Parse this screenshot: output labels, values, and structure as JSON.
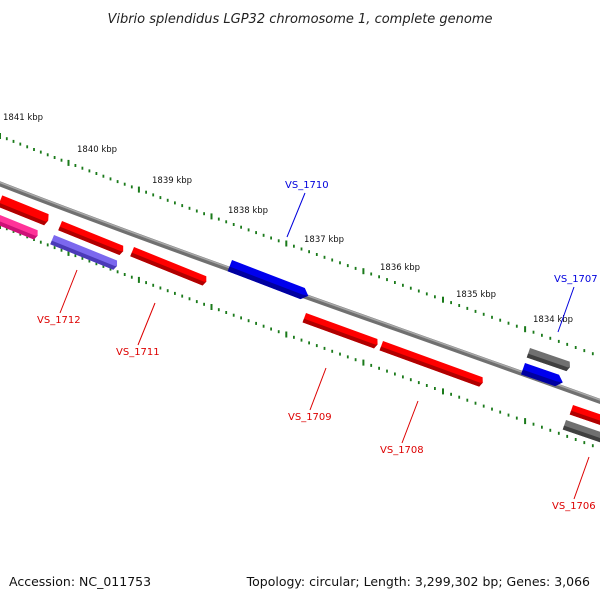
{
  "title": "Vibrio splendidus LGP32 chromosome 1, complete genome",
  "accession": "Accession: NC_011753",
  "summary": "Topology: circular; Length: 3,299,302 bp; Genes: 3,066",
  "colors": {
    "backbone": "#808080",
    "tick": "#1a7a1a",
    "gene_red": "#ff0000",
    "gene_blue": "#0000ee",
    "gene_gray": "#707070",
    "gene_pink": "#ff3399",
    "gene_purple": "#7b68ee",
    "label_red": "#dd0000",
    "label_blue": "#0000dd"
  },
  "scale_labels": [
    {
      "text": "1841 kbp",
      "kbp": 1841
    },
    {
      "text": "1840 kbp",
      "kbp": 1840
    },
    {
      "text": "1839 kbp",
      "kbp": 1839
    },
    {
      "text": "1838 kbp",
      "kbp": 1838
    },
    {
      "text": "1837 kbp",
      "kbp": 1837
    },
    {
      "text": "1836 kbp",
      "kbp": 1836
    },
    {
      "text": "1835 kbp",
      "kbp": 1835
    },
    {
      "text": "1834 kbp",
      "kbp": 1834
    }
  ],
  "gene_labels": [
    {
      "text": "VS_1712",
      "strand": "minus"
    },
    {
      "text": "VS_1711",
      "strand": "minus"
    },
    {
      "text": "VS_1710",
      "strand": "plus"
    },
    {
      "text": "VS_1709",
      "strand": "minus"
    },
    {
      "text": "VS_1708",
      "strand": "minus"
    },
    {
      "text": "VS_1707",
      "strand": "plus"
    },
    {
      "text": "VS_1706",
      "strand": "minus"
    }
  ]
}
